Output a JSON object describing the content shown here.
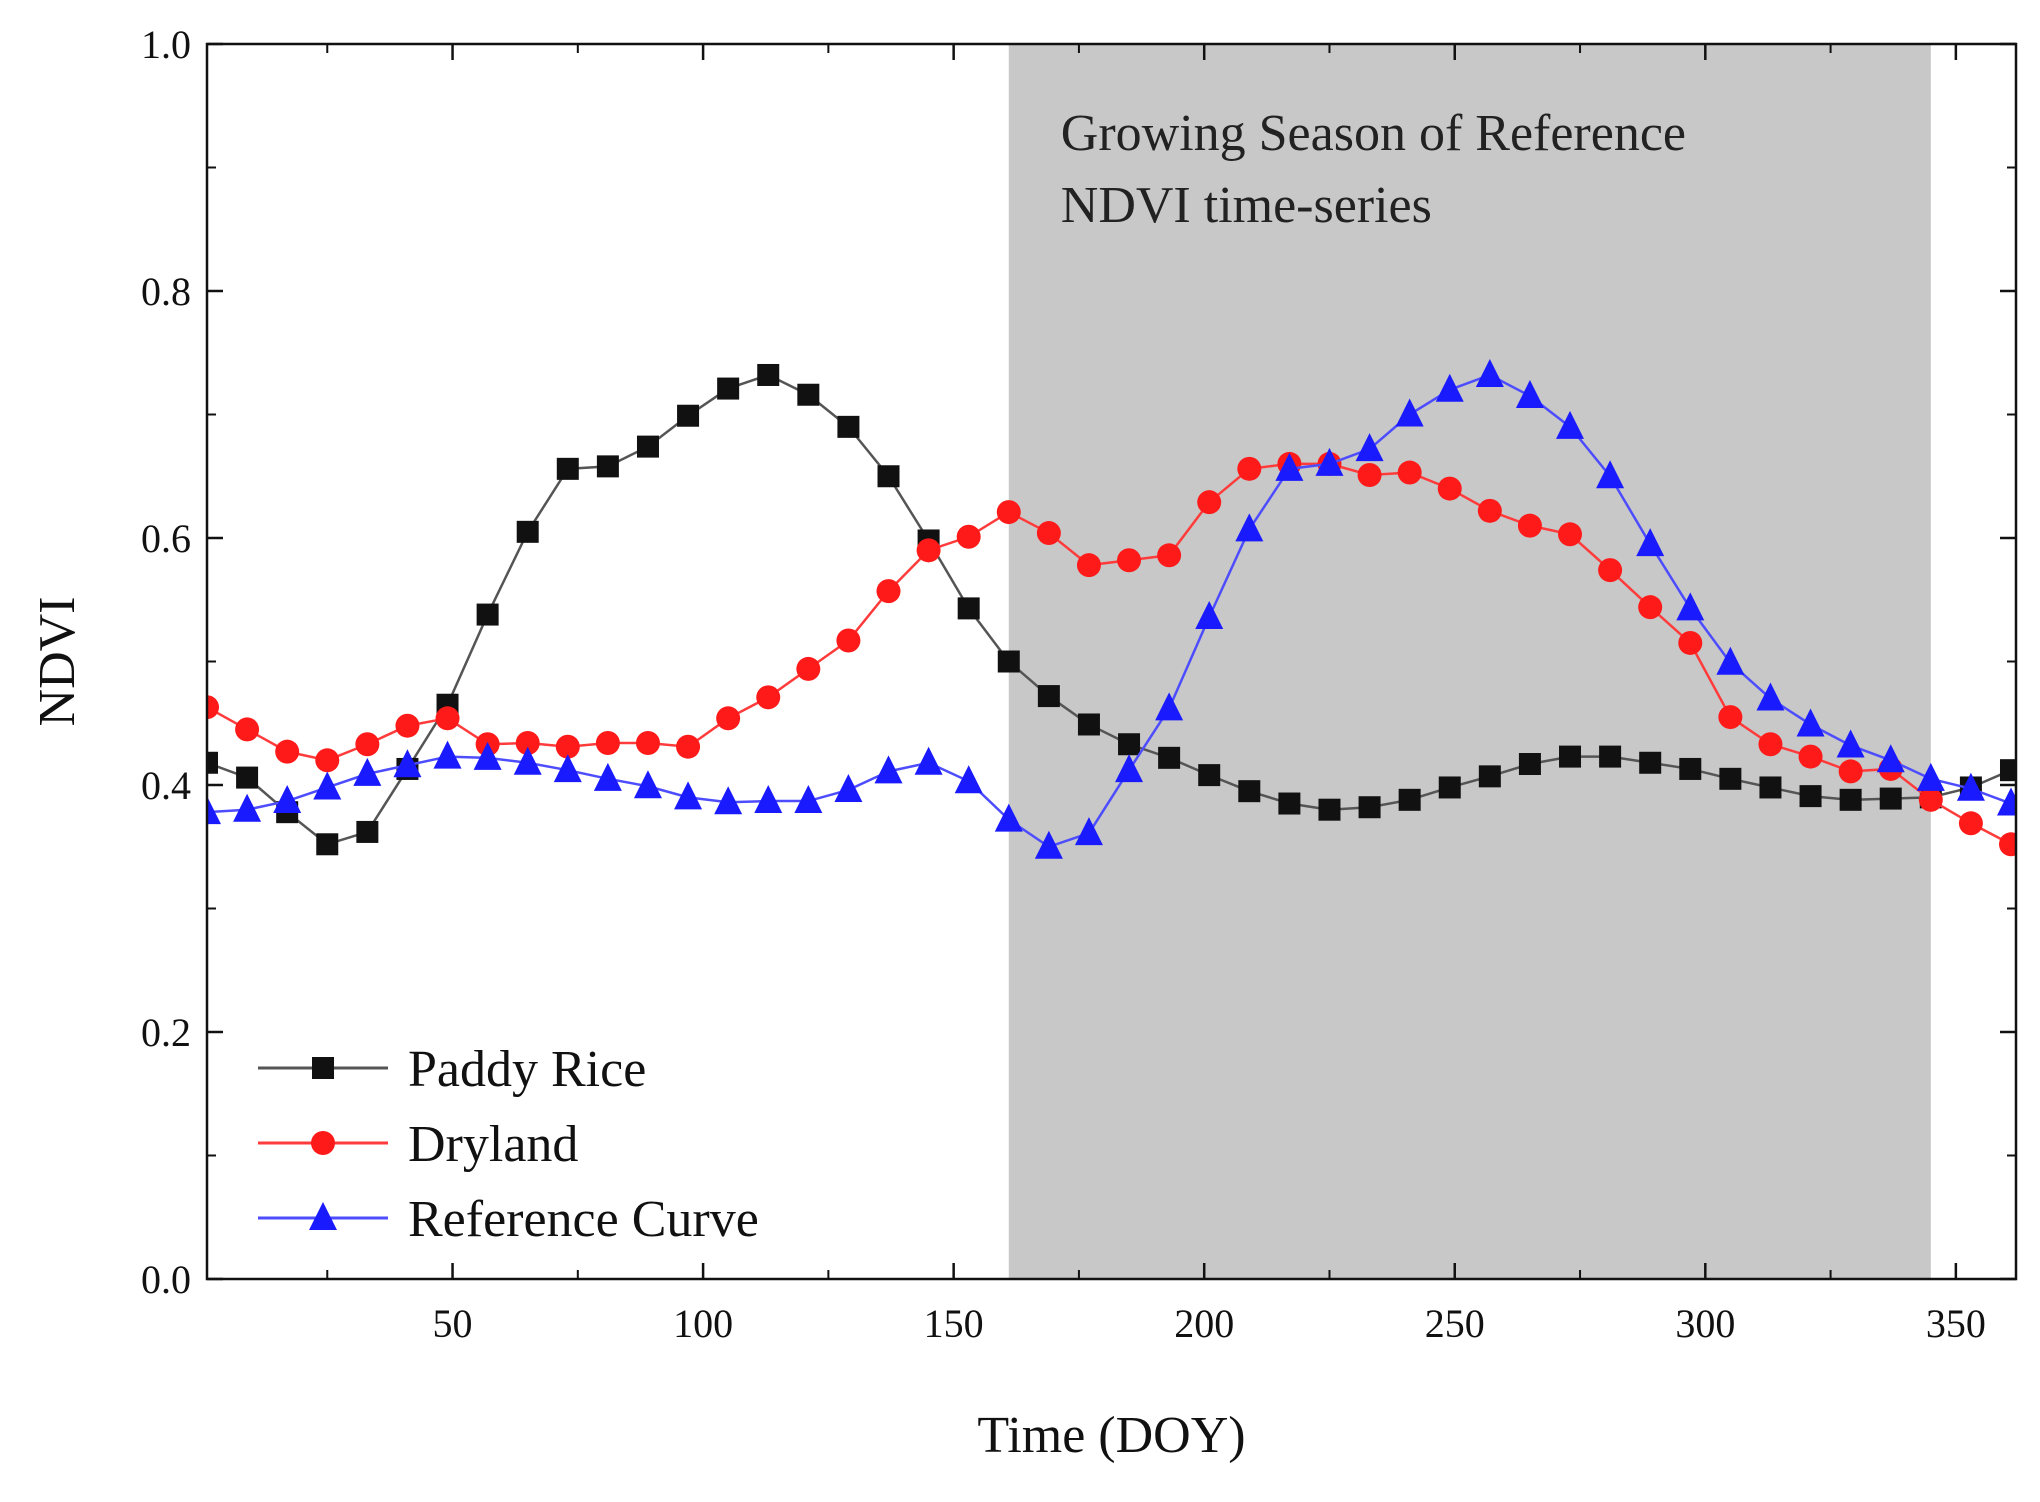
{
  "chart_data": {
    "type": "line",
    "xlabel": "Time (DOY)",
    "ylabel": "NDVI",
    "xlim": [
      1,
      362
    ],
    "ylim": [
      0.0,
      1.0
    ],
    "x_ticks": [
      50,
      100,
      150,
      200,
      250,
      300,
      350
    ],
    "x_tick_labels": [
      "50",
      "100",
      "150",
      "200",
      "250",
      "300",
      "350"
    ],
    "x_minor_ticks": [
      25,
      75,
      125,
      175,
      225,
      275,
      325
    ],
    "y_ticks": [
      0.0,
      0.2,
      0.4,
      0.6,
      0.8,
      1.0
    ],
    "y_tick_labels": [
      "0.0",
      "0.2",
      "0.4",
      "0.6",
      "0.8",
      "1.0"
    ],
    "y_minor_ticks": [
      0.1,
      0.3,
      0.5,
      0.7,
      0.9
    ],
    "shaded_region": {
      "x_start": 161,
      "x_end": 345,
      "color": "#c8c8c8",
      "label_lines": [
        "Growing Season of Reference",
        "NDVI time-series"
      ]
    },
    "legend_position": "bottom-left",
    "x": [
      1,
      9,
      17,
      25,
      33,
      41,
      49,
      57,
      65,
      73,
      81,
      89,
      97,
      105,
      113,
      121,
      129,
      137,
      145,
      153,
      161,
      169,
      177,
      185,
      193,
      201,
      209,
      217,
      225,
      233,
      241,
      249,
      257,
      265,
      273,
      281,
      289,
      297,
      305,
      313,
      321,
      329,
      337,
      345,
      353,
      361
    ],
    "series": [
      {
        "name": "Paddy Rice",
        "color": "#111111",
        "line_color": "#555555",
        "marker": "square",
        "values": [
          0.418,
          0.406,
          0.378,
          0.352,
          0.362,
          0.413,
          0.465,
          0.538,
          0.605,
          0.656,
          0.658,
          0.674,
          0.699,
          0.721,
          0.732,
          0.716,
          0.69,
          0.65,
          0.598,
          0.543,
          0.5,
          0.472,
          0.449,
          0.433,
          0.422,
          0.408,
          0.395,
          0.385,
          0.38,
          0.382,
          0.388,
          0.398,
          0.407,
          0.417,
          0.423,
          0.423,
          0.418,
          0.413,
          0.405,
          0.398,
          0.391,
          0.388,
          0.389,
          0.39,
          0.398,
          0.412
        ]
      },
      {
        "name": "Dryland",
        "color": "#ff1a1a",
        "line_color": "#ff3b3b",
        "marker": "circle",
        "values": [
          0.463,
          0.445,
          0.427,
          0.42,
          0.433,
          0.448,
          0.454,
          0.433,
          0.434,
          0.431,
          0.434,
          0.434,
          0.431,
          0.454,
          0.471,
          0.494,
          0.517,
          0.557,
          0.59,
          0.601,
          0.621,
          0.604,
          0.578,
          0.582,
          0.586,
          0.629,
          0.656,
          0.66,
          0.66,
          0.651,
          0.653,
          0.64,
          0.622,
          0.61,
          0.603,
          0.574,
          0.544,
          0.515,
          0.455,
          0.433,
          0.423,
          0.411,
          0.413,
          0.388,
          0.369,
          0.352
        ]
      },
      {
        "name": "Reference Curve",
        "color": "#1a1aff",
        "line_color": "#4d4dff",
        "marker": "triangle",
        "values": [
          0.378,
          0.38,
          0.387,
          0.398,
          0.409,
          0.416,
          0.423,
          0.422,
          0.418,
          0.412,
          0.405,
          0.399,
          0.39,
          0.386,
          0.387,
          0.387,
          0.396,
          0.411,
          0.418,
          0.403,
          0.372,
          0.35,
          0.361,
          0.412,
          0.462,
          0.536,
          0.607,
          0.656,
          0.66,
          0.672,
          0.7,
          0.72,
          0.732,
          0.715,
          0.69,
          0.65,
          0.595,
          0.543,
          0.499,
          0.47,
          0.449,
          0.432,
          0.42,
          0.405,
          0.397,
          0.385
        ]
      }
    ]
  }
}
